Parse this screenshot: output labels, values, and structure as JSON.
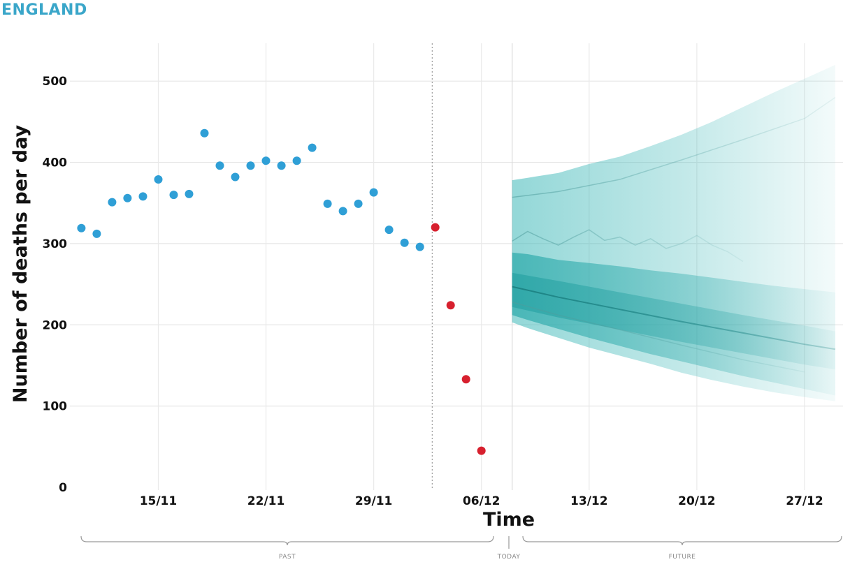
{
  "region_title": "ENGLAND",
  "chart_data": {
    "type": "scatter",
    "title": "",
    "xlabel": "Time",
    "ylabel": "Number of deaths per day",
    "y_ticks": [
      0,
      100,
      200,
      300,
      400,
      500
    ],
    "ylim": [
      0,
      550
    ],
    "x_tick_labels": [
      "15/11",
      "22/11",
      "29/11",
      "06/12",
      "13/12",
      "20/12",
      "27/12"
    ],
    "x_tick_days": [
      5,
      12,
      19,
      26,
      33,
      40,
      47
    ],
    "xlim_days": [
      -0.2,
      49.5
    ],
    "day_zero": "10/11",
    "grid": true,
    "report_cutoff_day": 22.8,
    "today_day": 28,
    "periods": {
      "past": "PAST",
      "today": "TODAY",
      "future": "FUTURE"
    },
    "series": [
      {
        "name": "",
        "color": "#2f9fd6",
        "points": [
          [
            0,
            319
          ],
          [
            1,
            312
          ],
          [
            2,
            351
          ],
          [
            3,
            356
          ],
          [
            4,
            358
          ],
          [
            5,
            379
          ],
          [
            6,
            360
          ],
          [
            7,
            361
          ],
          [
            8,
            436
          ],
          [
            9,
            396
          ],
          [
            10,
            382
          ],
          [
            11,
            396
          ],
          [
            12,
            402
          ],
          [
            13,
            396
          ],
          [
            14,
            402
          ],
          [
            15,
            418
          ],
          [
            16,
            349
          ],
          [
            17,
            340
          ],
          [
            18,
            349
          ],
          [
            19,
            363
          ],
          [
            20,
            317
          ],
          [
            21,
            301
          ],
          [
            22,
            296
          ]
        ]
      },
      {
        "name": "",
        "color": "#d7202e",
        "points": [
          [
            23,
            320
          ],
          [
            24,
            224
          ],
          [
            25,
            133
          ],
          [
            26,
            45
          ]
        ]
      }
    ],
    "projection": {
      "color": "#3bb7b7",
      "start_day": 28,
      "end_day": 49,
      "outer_band": {
        "days": [
          28,
          29,
          31,
          33,
          35,
          37,
          39,
          41,
          43,
          45,
          47,
          49
        ],
        "upper": [
          378,
          381,
          387,
          398,
          407,
          420,
          434,
          450,
          468,
          486,
          503,
          520
        ],
        "lower": [
          203,
          196,
          184,
          172,
          162,
          152,
          141,
          132,
          124,
          117,
          111,
          106
        ]
      },
      "middle_band": {
        "days": [
          28,
          29,
          31,
          33,
          35,
          37,
          39,
          41,
          43,
          45,
          47,
          49
        ],
        "upper": [
          289,
          287,
          280,
          276,
          272,
          267,
          263,
          258,
          253,
          248,
          244,
          240
        ],
        "lower": [
          212,
          206,
          195,
          184,
          174,
          164,
          155,
          146,
          137,
          129,
          121,
          113
        ]
      },
      "inner_band": {
        "days": [
          28,
          31,
          35,
          39,
          43,
          47,
          49
        ],
        "upper": [
          264,
          254,
          240,
          226,
          212,
          199,
          192
        ],
        "lower": [
          222,
          209,
          194,
          179,
          165,
          151,
          145
        ]
      },
      "median": {
        "days": [
          28,
          31,
          35,
          39,
          43,
          47,
          49
        ],
        "values": [
          247,
          234,
          219,
          204,
          190,
          176,
          170
        ]
      },
      "upper_line": {
        "days": [
          28,
          31,
          35,
          39,
          43,
          47,
          49
        ],
        "values": [
          357,
          364,
          379,
          403,
          428,
          454,
          480
        ]
      },
      "wavy_line": {
        "days": [
          28,
          29,
          30,
          31,
          32,
          33,
          34,
          35,
          36,
          37,
          38,
          39,
          40,
          41,
          42,
          43
        ],
        "values": [
          303,
          315,
          306,
          298,
          308,
          317,
          304,
          308,
          298,
          306,
          294,
          300,
          310,
          298,
          290,
          278
        ]
      },
      "low_line": {
        "days": [
          28,
          31,
          35,
          39,
          43,
          47
        ],
        "values": [
          228,
          212,
          194,
          175,
          157,
          142
        ]
      }
    }
  }
}
